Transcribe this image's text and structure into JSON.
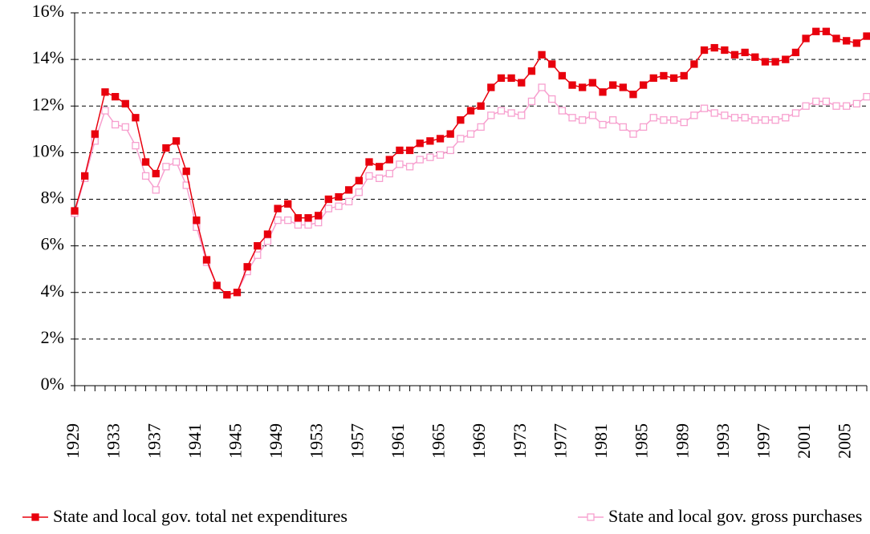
{
  "chart_data": {
    "type": "line",
    "categories": [
      "1929",
      null,
      null,
      null,
      "1933",
      null,
      null,
      null,
      "1937",
      null,
      null,
      null,
      "1941",
      null,
      null,
      null,
      "1945",
      null,
      null,
      null,
      "1949",
      null,
      null,
      null,
      "1953",
      null,
      null,
      null,
      "1957",
      null,
      null,
      null,
      "1961",
      null,
      null,
      null,
      "1965",
      null,
      null,
      null,
      "1969",
      null,
      null,
      null,
      "1973",
      null,
      null,
      null,
      "1977",
      null,
      null,
      null,
      "1981",
      null,
      null,
      null,
      "1985",
      null,
      null,
      null,
      "1989",
      null,
      null,
      null,
      "1993",
      null,
      null,
      null,
      "1997",
      null,
      null,
      null,
      "2001",
      null,
      null,
      null,
      "2005",
      null,
      null
    ],
    "series": [
      {
        "name": "State and local gov. total net expenditures",
        "color": "#e8000d",
        "marker": "filled-square",
        "values": [
          7.5,
          9.0,
          10.8,
          12.6,
          12.4,
          12.1,
          11.5,
          9.6,
          9.1,
          10.2,
          10.5,
          9.2,
          7.1,
          5.4,
          4.3,
          3.9,
          4.0,
          5.1,
          6.0,
          6.5,
          7.6,
          7.8,
          7.2,
          7.2,
          7.3,
          8.0,
          8.1,
          8.4,
          8.8,
          9.6,
          9.4,
          9.7,
          10.1,
          10.1,
          10.4,
          10.5,
          10.6,
          10.8,
          11.4,
          11.8,
          12.0,
          12.8,
          13.2,
          13.2,
          13.0,
          13.5,
          14.2,
          13.8,
          13.3,
          12.9,
          12.8,
          13.0,
          12.6,
          12.9,
          12.8,
          12.5,
          12.9,
          13.2,
          13.3,
          13.2,
          13.3,
          13.8,
          14.4,
          14.5,
          14.4,
          14.2,
          14.3,
          14.1,
          13.9,
          13.9,
          14.0,
          14.3,
          14.9,
          15.2,
          15.2,
          14.9,
          14.8,
          14.7,
          15.0
        ]
      },
      {
        "name": "State and local gov. gross purchases",
        "color": "#f7a0cf",
        "marker": "open-square",
        "values": [
          7.4,
          8.9,
          10.5,
          11.8,
          11.2,
          11.1,
          10.3,
          9.0,
          8.4,
          9.4,
          9.6,
          8.6,
          6.8,
          5.3,
          4.3,
          3.9,
          4.0,
          4.9,
          5.6,
          6.2,
          7.1,
          7.1,
          6.9,
          6.9,
          7.0,
          7.6,
          7.7,
          7.9,
          8.3,
          9.0,
          8.9,
          9.1,
          9.5,
          9.4,
          9.7,
          9.8,
          9.9,
          10.1,
          10.6,
          10.8,
          11.1,
          11.6,
          11.8,
          11.7,
          11.6,
          12.2,
          12.8,
          12.3,
          11.8,
          11.5,
          11.4,
          11.6,
          11.2,
          11.4,
          11.1,
          10.8,
          11.1,
          11.5,
          11.4,
          11.4,
          11.3,
          11.6,
          11.9,
          11.7,
          11.6,
          11.5,
          11.5,
          11.4,
          11.4,
          11.4,
          11.5,
          11.7,
          12.0,
          12.2,
          12.2,
          12.0,
          12.0,
          12.1,
          12.4
        ]
      }
    ],
    "ylim": [
      0,
      16
    ],
    "yticks": [
      {
        "value": 0,
        "label": "0%"
      },
      {
        "value": 2,
        "label": "2%"
      },
      {
        "value": 4,
        "label": "4%"
      },
      {
        "value": 6,
        "label": "6%"
      },
      {
        "value": 8,
        "label": "8%"
      },
      {
        "value": 10,
        "label": "10%"
      },
      {
        "value": 12,
        "label": "12%"
      },
      {
        "value": 14,
        "label": "14%"
      },
      {
        "value": 16,
        "label": "16%"
      }
    ],
    "grid": true,
    "legend": "bottom"
  }
}
